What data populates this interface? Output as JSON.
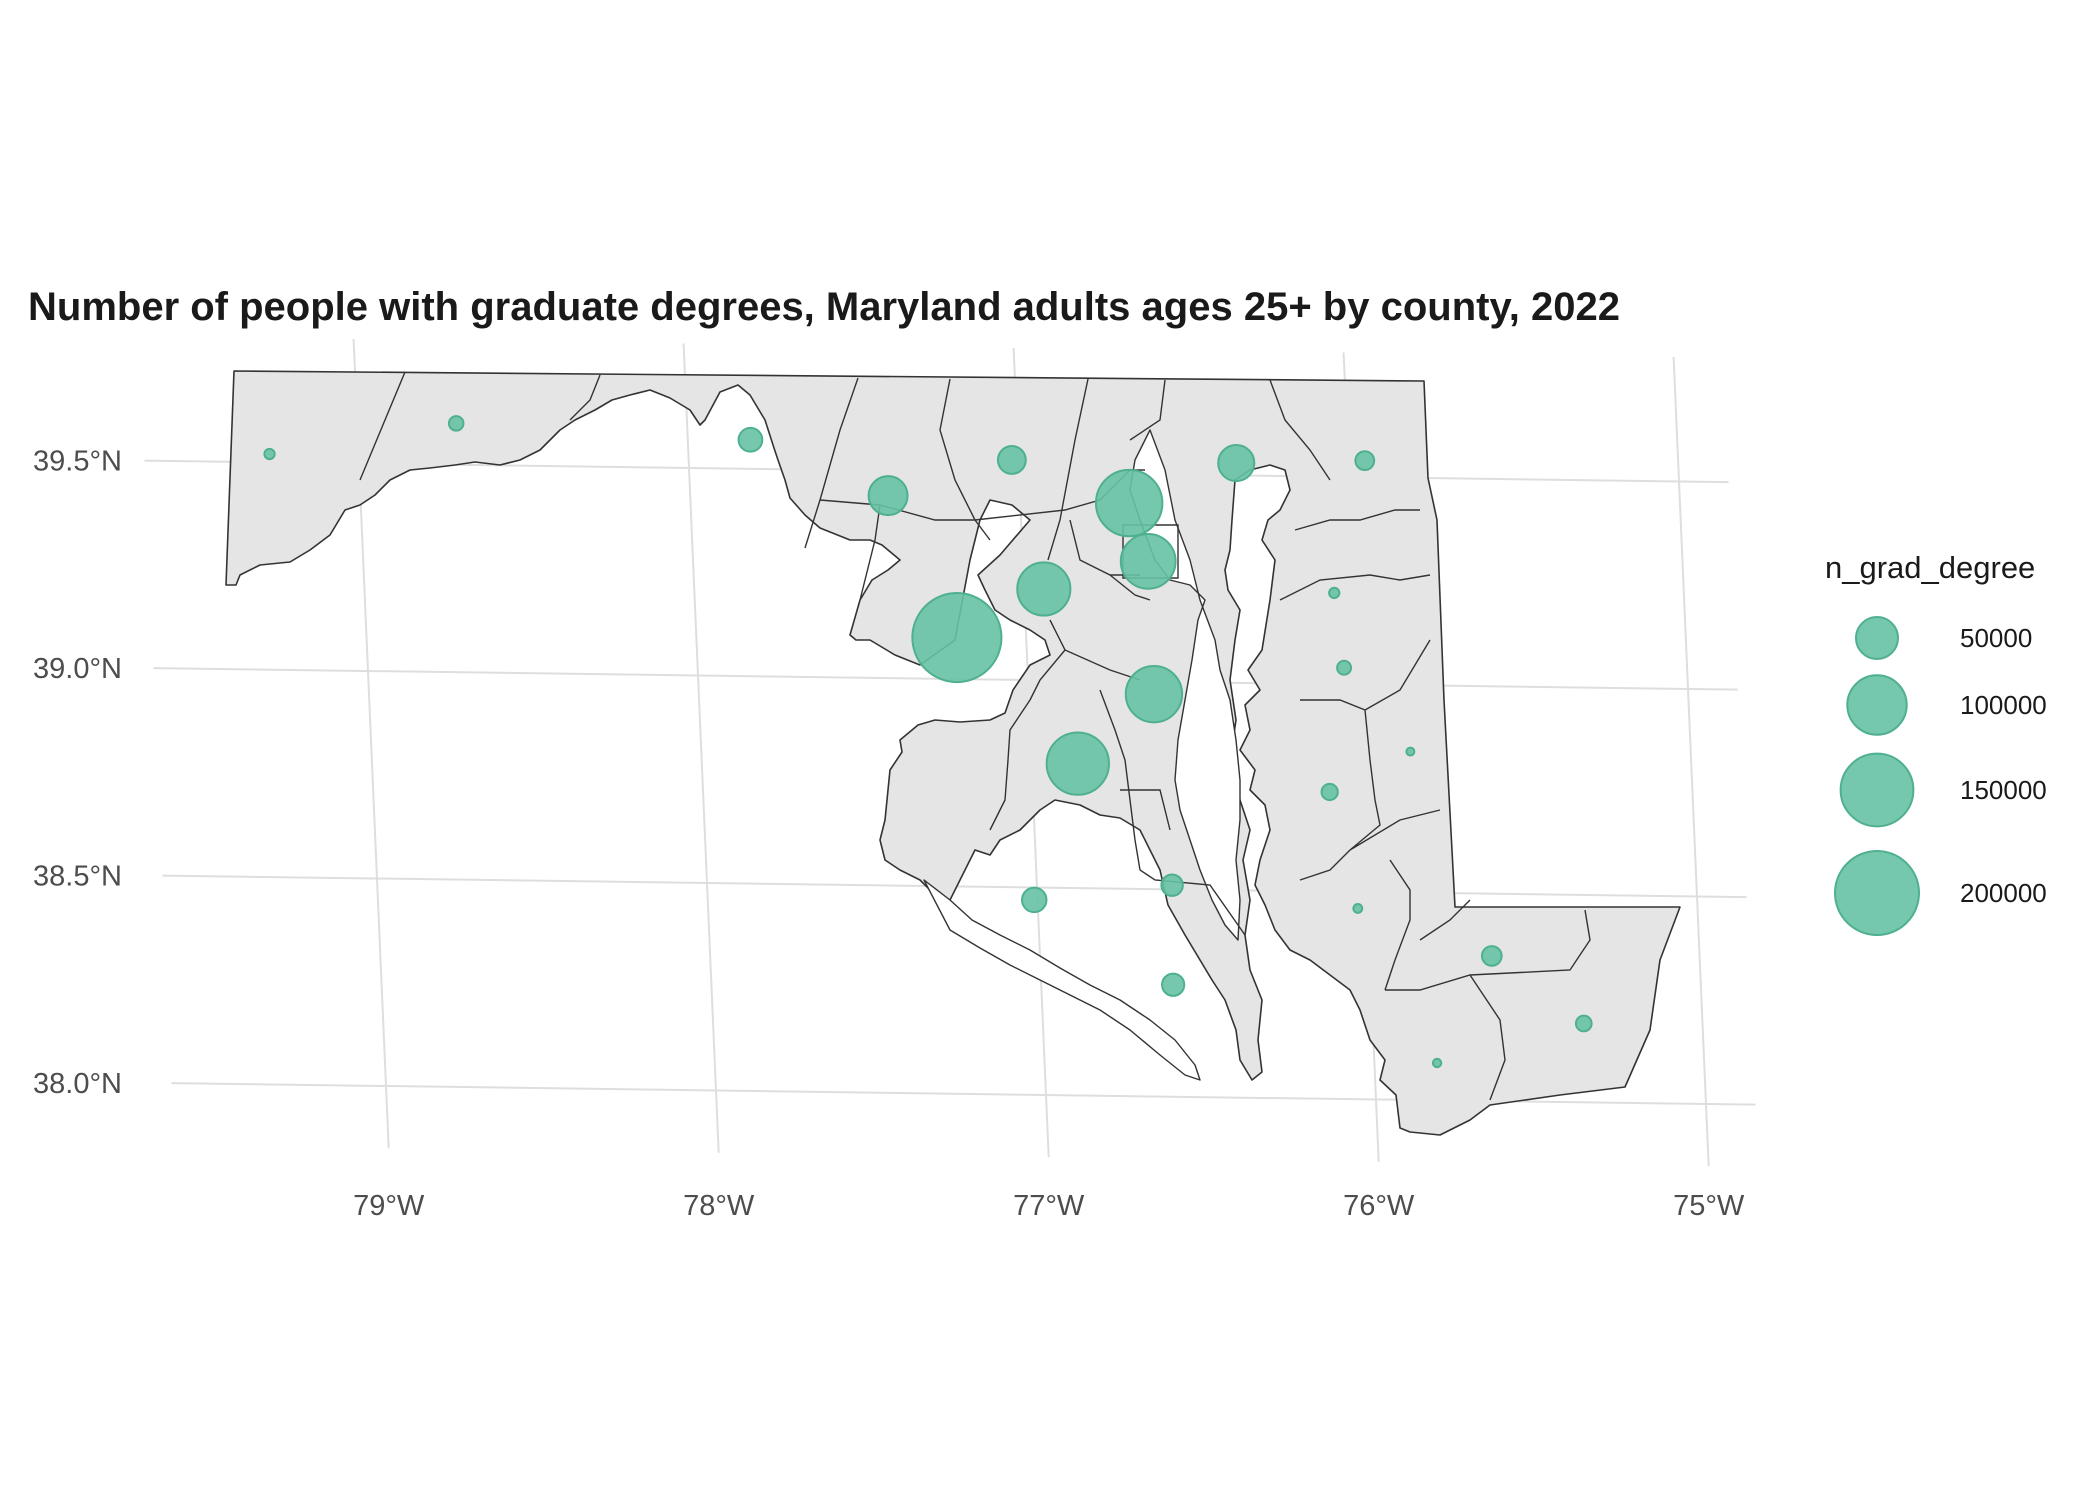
{
  "chart_data": {
    "type": "bubble-map",
    "title": "Number of people with graduate degrees, Maryland adults ages 25+ by county, 2022",
    "x_ticks": [
      {
        "lon": -79,
        "label": "79°W"
      },
      {
        "lon": -78,
        "label": "78°W"
      },
      {
        "lon": -77,
        "label": "77°W"
      },
      {
        "lon": -76,
        "label": "76°W"
      },
      {
        "lon": -75,
        "label": "75°W"
      }
    ],
    "y_ticks": [
      {
        "lat": 39.5,
        "label": "39.5°N"
      },
      {
        "lat": 39.0,
        "label": "39.0°N"
      },
      {
        "lat": 38.5,
        "label": "38.5°N"
      },
      {
        "lat": 38.0,
        "label": "38.0°N"
      }
    ],
    "xlim": [
      -79.5,
      -75.0
    ],
    "ylim": [
      37.9,
      39.75
    ],
    "grid": true,
    "point_color": "#66c2a5",
    "legend": {
      "title": "n_grad_degree",
      "position": "right",
      "items": [
        {
          "value": 50000,
          "label": "50000"
        },
        {
          "value": 100000,
          "label": "100000"
        },
        {
          "value": 150000,
          "label": "150000"
        },
        {
          "value": 200000,
          "label": "200000"
        }
      ]
    },
    "points": [
      {
        "lon": -79.27,
        "lat": 39.52,
        "value": 3000
      },
      {
        "lon": -78.7,
        "lat": 39.6,
        "value": 6000
      },
      {
        "lon": -77.81,
        "lat": 39.57,
        "value": 16000
      },
      {
        "lon": -77.4,
        "lat": 39.44,
        "value": 43000
      },
      {
        "lon": -77.02,
        "lat": 39.53,
        "value": 22000
      },
      {
        "lon": -76.67,
        "lat": 39.43,
        "value": 125000
      },
      {
        "lon": -76.34,
        "lat": 39.53,
        "value": 37000
      },
      {
        "lon": -75.95,
        "lat": 39.54,
        "value": 10000
      },
      {
        "lon": -76.62,
        "lat": 39.29,
        "value": 85000
      },
      {
        "lon": -76.94,
        "lat": 39.22,
        "value": 80000
      },
      {
        "lon": -77.21,
        "lat": 39.1,
        "value": 225000
      },
      {
        "lon": -76.62,
        "lat": 38.97,
        "value": 90000
      },
      {
        "lon": -76.86,
        "lat": 38.8,
        "value": 110000
      },
      {
        "lon": -76.06,
        "lat": 39.22,
        "value": 3000
      },
      {
        "lon": -76.04,
        "lat": 39.04,
        "value": 5500
      },
      {
        "lon": -75.85,
        "lat": 38.84,
        "value": 1800
      },
      {
        "lon": -76.1,
        "lat": 38.74,
        "value": 7500
      },
      {
        "lon": -76.59,
        "lat": 38.51,
        "value": 13000
      },
      {
        "lon": -77.01,
        "lat": 38.47,
        "value": 17000
      },
      {
        "lon": -76.03,
        "lat": 38.46,
        "value": 2200
      },
      {
        "lon": -76.6,
        "lat": 38.27,
        "value": 14000
      },
      {
        "lon": -75.63,
        "lat": 38.35,
        "value": 11000
      },
      {
        "lon": -75.36,
        "lat": 38.19,
        "value": 7000
      },
      {
        "lon": -75.81,
        "lat": 38.09,
        "value": 2000
      }
    ]
  }
}
